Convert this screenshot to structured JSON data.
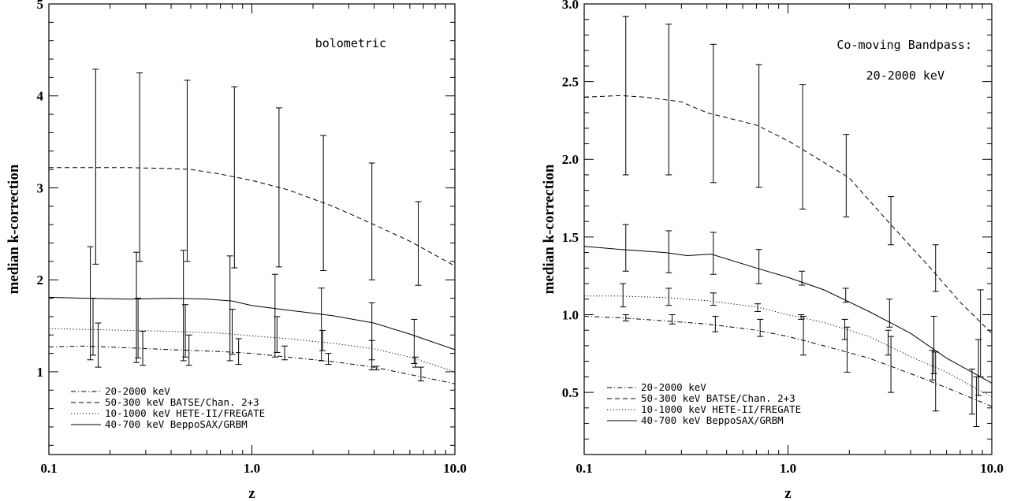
{
  "chart_data": [
    {
      "type": "line",
      "xlabel": "z",
      "ylabel": "median k-correction",
      "xscale": "log",
      "xlim": [
        0.1,
        10.0
      ],
      "ylim": [
        0.1,
        5
      ],
      "x_ticks": [
        0.1,
        1.0,
        10.0
      ],
      "x_tick_labels": [
        "0.1",
        "1.0",
        "10.0"
      ],
      "y_ticks": [
        1,
        2,
        3,
        4,
        5
      ],
      "y_tick_labels": [
        "1",
        "2",
        "3",
        "4",
        "5"
      ],
      "annotations": [
        "bolometric"
      ],
      "legend_position": "bottom-left",
      "series": [
        {
          "name": "20-2000 keV",
          "style": "dashdot",
          "x": [
            0.1,
            0.15,
            0.25,
            0.4,
            0.7,
            1.0,
            1.5,
            2.5,
            4.0,
            6.0,
            10.0
          ],
          "y": [
            1.27,
            1.28,
            1.26,
            1.24,
            1.22,
            1.2,
            1.16,
            1.11,
            1.05,
            0.97,
            0.87
          ],
          "error_x": [
            0.175,
            0.29,
            0.49,
            0.86,
            1.45,
            2.38,
            4.1,
            6.8
          ],
          "error_low": [
            1.05,
            1.07,
            1.07,
            1.08,
            1.13,
            1.08,
            1.02,
            0.9
          ],
          "error_high": [
            1.53,
            1.44,
            1.4,
            1.36,
            1.28,
            1.2,
            1.06,
            1.05
          ]
        },
        {
          "name": "50-300 keV BATSE/Chan. 2+3",
          "style": "dashed",
          "x": [
            0.1,
            0.15,
            0.25,
            0.4,
            0.5,
            0.7,
            1.0,
            1.5,
            2.5,
            4.0,
            6.0,
            10.0
          ],
          "y": [
            3.22,
            3.22,
            3.22,
            3.21,
            3.2,
            3.15,
            3.08,
            2.98,
            2.8,
            2.6,
            2.42,
            2.15
          ],
          "error_x": [
            0.17,
            0.28,
            0.48,
            0.82,
            1.36,
            2.25,
            3.9,
            6.6
          ],
          "error_low": [
            2.17,
            2.2,
            2.2,
            2.13,
            2.14,
            2.1,
            2.0,
            1.94
          ],
          "error_high": [
            4.29,
            4.25,
            4.17,
            4.1,
            3.87,
            3.57,
            3.27,
            2.85
          ]
        },
        {
          "name": "10-1000 keV HETE-II/FREGATE",
          "style": "dotted",
          "x": [
            0.1,
            0.15,
            0.25,
            0.4,
            0.7,
            1.0,
            1.5,
            2.5,
            4.0,
            6.0,
            10.0
          ],
          "y": [
            1.47,
            1.46,
            1.45,
            1.44,
            1.42,
            1.39,
            1.36,
            1.31,
            1.25,
            1.16,
            1.0
          ],
          "error_x": [
            0.16,
            0.27,
            0.46,
            0.78,
            1.3,
            2.2,
            3.9,
            6.3
          ],
          "error_low": [
            1.13,
            1.1,
            1.12,
            1.12,
            1.16,
            1.12,
            1.02,
            1.09
          ],
          "error_high": [
            2.36,
            2.3,
            2.32,
            2.26,
            2.06,
            1.91,
            1.75,
            1.57
          ]
        },
        {
          "name": "40-700 keV BeppoSAX/GRBM",
          "style": "solid",
          "x": [
            0.1,
            0.15,
            0.25,
            0.4,
            0.6,
            0.8,
            1.0,
            1.5,
            2.5,
            4.0,
            6.0,
            10.0
          ],
          "y": [
            1.81,
            1.8,
            1.79,
            1.8,
            1.79,
            1.77,
            1.72,
            1.67,
            1.61,
            1.53,
            1.41,
            1.24
          ],
          "error_x": [
            0.165,
            0.275,
            0.47,
            0.8,
            1.33,
            2.23,
            3.9,
            6.4
          ],
          "error_low": [
            1.18,
            1.15,
            1.16,
            1.19,
            1.21,
            1.23,
            1.13,
            1.05
          ],
          "error_high": [
            1.8,
            1.8,
            1.73,
            1.68,
            1.6,
            1.45,
            1.34,
            1.16
          ]
        }
      ]
    },
    {
      "type": "line",
      "xlabel": "z",
      "ylabel": "median k-correction",
      "xscale": "log",
      "xlim": [
        0.1,
        10.0
      ],
      "ylim": [
        0.1,
        3.0
      ],
      "x_ticks": [
        0.1,
        1.0,
        10.0
      ],
      "x_tick_labels": [
        "0.1",
        "1.0",
        "10.0"
      ],
      "y_ticks": [
        0.5,
        1.0,
        1.5,
        2.0,
        2.5,
        3.0
      ],
      "y_tick_labels": [
        "0.5",
        "1.0",
        "1.5",
        "2.0",
        "2.5",
        "3.0"
      ],
      "annotations": [
        "Co-moving Bandpass:",
        "20-2000 keV"
      ],
      "legend_position": "bottom-left",
      "series": [
        {
          "name": "20-2000 keV",
          "style": "dashdot",
          "x": [
            0.1,
            0.15,
            0.25,
            0.4,
            0.7,
            1.0,
            1.5,
            2.5,
            4.0,
            6.0,
            10.0
          ],
          "y": [
            0.99,
            0.98,
            0.96,
            0.94,
            0.9,
            0.86,
            0.8,
            0.72,
            0.62,
            0.53,
            0.41
          ],
          "error_x": [
            0.16,
            0.27,
            0.44,
            0.73,
            1.19,
            1.95,
            3.2,
            5.3,
            8.4
          ],
          "error_low": [
            0.96,
            0.94,
            0.89,
            0.86,
            0.74,
            0.63,
            0.5,
            0.38,
            0.28
          ],
          "error_high": [
            1.0,
            1.0,
            0.99,
            0.97,
            0.99,
            0.92,
            0.86,
            0.76,
            0.6
          ]
        },
        {
          "name": "50-300 keV BATSE/Chan. 2+3",
          "style": "dashed",
          "x": [
            0.1,
            0.15,
            0.2,
            0.3,
            0.4,
            0.7,
            1.0,
            1.5,
            2.0,
            3.0,
            5.0,
            7.0,
            10.0
          ],
          "y": [
            2.4,
            2.41,
            2.4,
            2.37,
            2.3,
            2.22,
            2.12,
            1.98,
            1.88,
            1.62,
            1.3,
            1.08,
            0.88
          ],
          "error_x": [
            0.16,
            0.26,
            0.43,
            0.72,
            1.18,
            1.93,
            3.2,
            5.3,
            8.8
          ],
          "error_low": [
            1.9,
            1.9,
            1.85,
            1.82,
            1.68,
            1.63,
            1.45,
            1.15,
            0.6
          ],
          "error_high": [
            2.92,
            2.87,
            2.74,
            2.61,
            2.48,
            2.16,
            1.76,
            1.45,
            1.16
          ]
        },
        {
          "name": "10-1000 keV HETE-II/FREGATE",
          "style": "dotted",
          "x": [
            0.1,
            0.15,
            0.25,
            0.4,
            0.7,
            1.0,
            1.5,
            2.5,
            4.0,
            6.0,
            10.0
          ],
          "y": [
            1.12,
            1.12,
            1.11,
            1.09,
            1.05,
            1.0,
            0.95,
            0.86,
            0.73,
            0.63,
            0.47
          ],
          "error_x": [
            0.155,
            0.26,
            0.43,
            0.71,
            1.16,
            1.9,
            3.1,
            5.1,
            8.0
          ],
          "error_low": [
            1.05,
            1.06,
            1.06,
            1.02,
            0.97,
            0.84,
            0.74,
            0.58,
            0.36
          ],
          "error_high": [
            1.2,
            1.17,
            1.14,
            1.07,
            1.0,
            0.97,
            0.9,
            0.77,
            0.65
          ]
        },
        {
          "name": "40-700 keV BeppoSAX/GRBM",
          "style": "solid",
          "x": [
            0.1,
            0.15,
            0.25,
            0.32,
            0.42,
            0.7,
            1.0,
            1.5,
            2.5,
            4.0,
            6.0,
            10.0
          ],
          "y": [
            1.44,
            1.42,
            1.4,
            1.38,
            1.39,
            1.3,
            1.24,
            1.16,
            1.02,
            0.88,
            0.72,
            0.56
          ],
          "error_x": [
            0.16,
            0.26,
            0.43,
            0.72,
            1.17,
            1.92,
            3.15,
            5.2,
            8.6
          ],
          "error_low": [
            1.28,
            1.27,
            1.26,
            1.2,
            1.19,
            1.08,
            0.92,
            0.62,
            0.48
          ],
          "error_high": [
            1.58,
            1.54,
            1.53,
            1.42,
            1.28,
            1.17,
            1.1,
            0.99,
            0.84
          ]
        }
      ]
    }
  ]
}
